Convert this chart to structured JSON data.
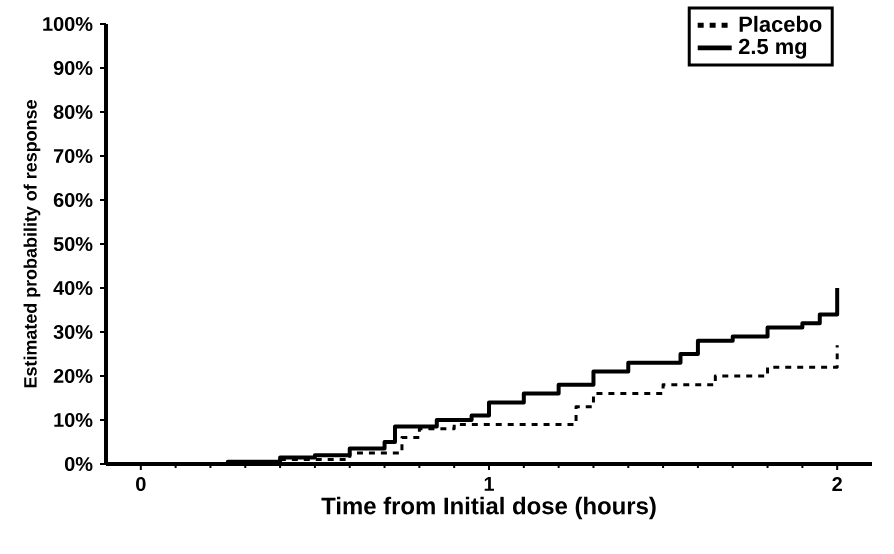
{
  "chart_data": {
    "type": "step",
    "xlabel": "Time from Initial dose (hours)",
    "ylabel": "Estimated probability of response",
    "xlim": [
      -0.1,
      2.1
    ],
    "ylim": [
      0,
      100
    ],
    "xticks": [
      0,
      1,
      2
    ],
    "yticks": [
      {
        "value": 0,
        "label": "0%"
      },
      {
        "value": 10,
        "label": "10%"
      },
      {
        "value": 20,
        "label": "20%"
      },
      {
        "value": 30,
        "label": "30%"
      },
      {
        "value": 40,
        "label": "40%"
      },
      {
        "value": 50,
        "label": "50%"
      },
      {
        "value": 60,
        "label": "60%"
      },
      {
        "value": 70,
        "label": "70%"
      },
      {
        "value": 80,
        "label": "80%"
      },
      {
        "value": 90,
        "label": "90%"
      },
      {
        "value": 100,
        "label": "100%"
      }
    ],
    "legend": "top right",
    "grid": false,
    "series": [
      {
        "name": "Placebo",
        "color": "#000000",
        "line_style": "dashed",
        "x": [
          0,
          0.4,
          0.6,
          0.75,
          0.8,
          0.9,
          1.25,
          1.3,
          1.5,
          1.65,
          1.8,
          2.0
        ],
        "values": [
          0,
          1,
          2.5,
          6,
          8,
          9,
          13,
          16,
          18,
          20,
          22,
          27
        ]
      },
      {
        "name": "2.5 mg",
        "color": "#000000",
        "line_style": "solid",
        "x": [
          0,
          0.25,
          0.4,
          0.5,
          0.6,
          0.7,
          0.73,
          0.85,
          0.95,
          1.0,
          1.1,
          1.2,
          1.3,
          1.4,
          1.55,
          1.6,
          1.7,
          1.8,
          1.9,
          1.95,
          2.0
        ],
        "values": [
          0,
          0.5,
          1.5,
          2,
          3.5,
          5,
          8.5,
          10,
          11,
          14,
          16,
          18,
          21,
          23,
          25,
          28,
          29,
          31,
          32,
          34,
          40
        ]
      }
    ]
  }
}
